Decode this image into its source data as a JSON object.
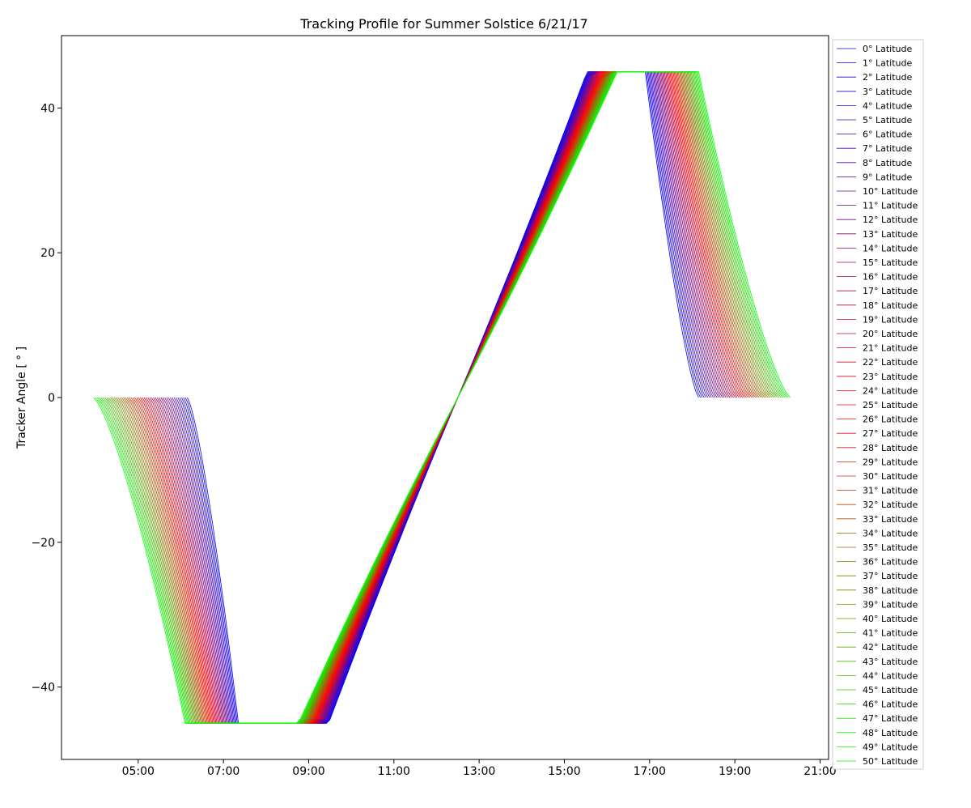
{
  "chart_data": {
    "type": "line",
    "title": "Tracking Profile for Summer Solstice 6/21/17",
    "xlabel": "",
    "ylabel": "Tracker Angle [ ° ]",
    "x_tick_labels": [
      "05:00",
      "07:00",
      "09:00",
      "11:00",
      "13:00",
      "15:00",
      "17:00",
      "19:00",
      "21:00"
    ],
    "x_tick_hours": [
      5,
      7,
      9,
      11,
      13,
      15,
      17,
      19,
      21
    ],
    "xlim_hours": [
      3.2,
      21.2
    ],
    "y_tick_values": [
      -40,
      -20,
      0,
      20,
      40
    ],
    "ylim": [
      -50,
      50
    ],
    "legend_position": "right, outside plot",
    "grid": false,
    "series_description": "One tracking curve per latitude 0° to 50° in 1° steps",
    "latitude_degrees": [
      0,
      50
    ],
    "legend_suffix": "° Latitude",
    "profile_rules": {
      "solar_noon_hour": 12.5,
      "tracker_limit_deg": 45,
      "morning_start_hour_by_latitude": [
        6.15,
        3.95
      ],
      "morning_end_hour_by_latitude": [
        7.35,
        6.1
      ],
      "evening_start_hour_by_latitude": [
        16.9,
        18.15
      ],
      "evening_end_hour_by_latitude": [
        18.15,
        20.3
      ]
    },
    "colors": {
      "low_latitude": "#0000ff",
      "mid_latitude": "#ff0000",
      "high_latitude": "#00ff00"
    }
  }
}
